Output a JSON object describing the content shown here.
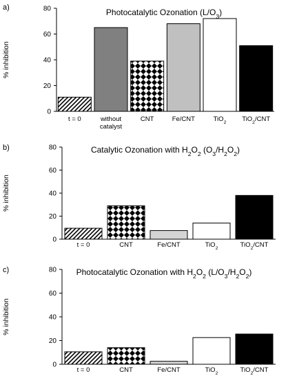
{
  "chart_data": [
    {
      "type": "bar",
      "panel_label": "a)",
      "title_text": "Photocatalytic Ozonation (L/O",
      "title_sub": "3",
      "title_tail": ")",
      "ylabel": "% inhibition",
      "ylim": [
        0,
        80
      ],
      "yticks": [
        0,
        20,
        40,
        60,
        80
      ],
      "grid": false,
      "categories": [
        {
          "text": "t = 0",
          "sub": "",
          "tail": ""
        },
        {
          "text": "without",
          "line2": "catalyst",
          "sub": "",
          "tail": ""
        },
        {
          "text": "CNT",
          "sub": "",
          "tail": ""
        },
        {
          "text": "Fe/CNT",
          "sub": "",
          "tail": ""
        },
        {
          "text": "TiO",
          "sub": "2",
          "tail": ""
        },
        {
          "text": "TiO",
          "sub": "2",
          "tail": "/CNT"
        }
      ],
      "values": [
        11,
        65,
        39,
        68,
        72,
        51
      ],
      "fills": [
        "hatch",
        "#808080",
        "checker",
        "#c0c0c0",
        "#ffffff",
        "#000000"
      ]
    },
    {
      "type": "bar",
      "panel_label": "b)",
      "title_text": "Catalytic Ozonation with H",
      "title_sub": "2",
      "title_tail": "O",
      "title_sub2": "2",
      "title_tail2": " (O",
      "title_sub3": "3",
      "title_tail3": "/H",
      "title_sub4": "2",
      "title_tail4": "O",
      "title_sub5": "2",
      "title_tail5": ")",
      "ylabel": "% inhibition",
      "ylim": [
        0,
        80
      ],
      "yticks": [
        0,
        20,
        40,
        60,
        80
      ],
      "grid": false,
      "categories": [
        {
          "text": "t = 0",
          "sub": "",
          "tail": ""
        },
        {
          "text": "CNT",
          "sub": "",
          "tail": ""
        },
        {
          "text": "Fe/CNT",
          "sub": "",
          "tail": ""
        },
        {
          "text": "TiO",
          "sub": "2",
          "tail": ""
        },
        {
          "text": "TiO",
          "sub": "2",
          "tail": "/CNT"
        }
      ],
      "values": [
        9.5,
        29,
        7.5,
        14,
        38
      ],
      "fills": [
        "hatch",
        "checker",
        "#d4d4d4",
        "#ffffff",
        "#000000"
      ]
    },
    {
      "type": "bar",
      "panel_label": "c)",
      "title_text": "Photocatalytic Ozonation with H",
      "title_sub": "2",
      "title_tail": "O",
      "title_sub2": "2",
      "title_tail2": " (L/O",
      "title_sub3": "3",
      "title_tail3": "/H",
      "title_sub4": "2",
      "title_tail4": "O",
      "title_sub5": "2",
      "title_tail5": ")",
      "ylabel": "% inhibition",
      "ylim": [
        0,
        80
      ],
      "yticks": [
        0,
        20,
        40,
        60,
        80
      ],
      "grid": false,
      "categories": [
        {
          "text": "t = 0",
          "sub": "",
          "tail": ""
        },
        {
          "text": "CNT",
          "sub": "",
          "tail": ""
        },
        {
          "text": "Fe/CNT",
          "sub": "",
          "tail": ""
        },
        {
          "text": "TiO",
          "sub": "2",
          "tail": ""
        },
        {
          "text": "TiO",
          "sub": "2",
          "tail": "/CNT"
        }
      ],
      "values": [
        10.5,
        14,
        2.5,
        22.5,
        25.5
      ],
      "fills": [
        "hatch",
        "checker",
        "#d4d4d4",
        "#ffffff",
        "#000000"
      ]
    }
  ]
}
